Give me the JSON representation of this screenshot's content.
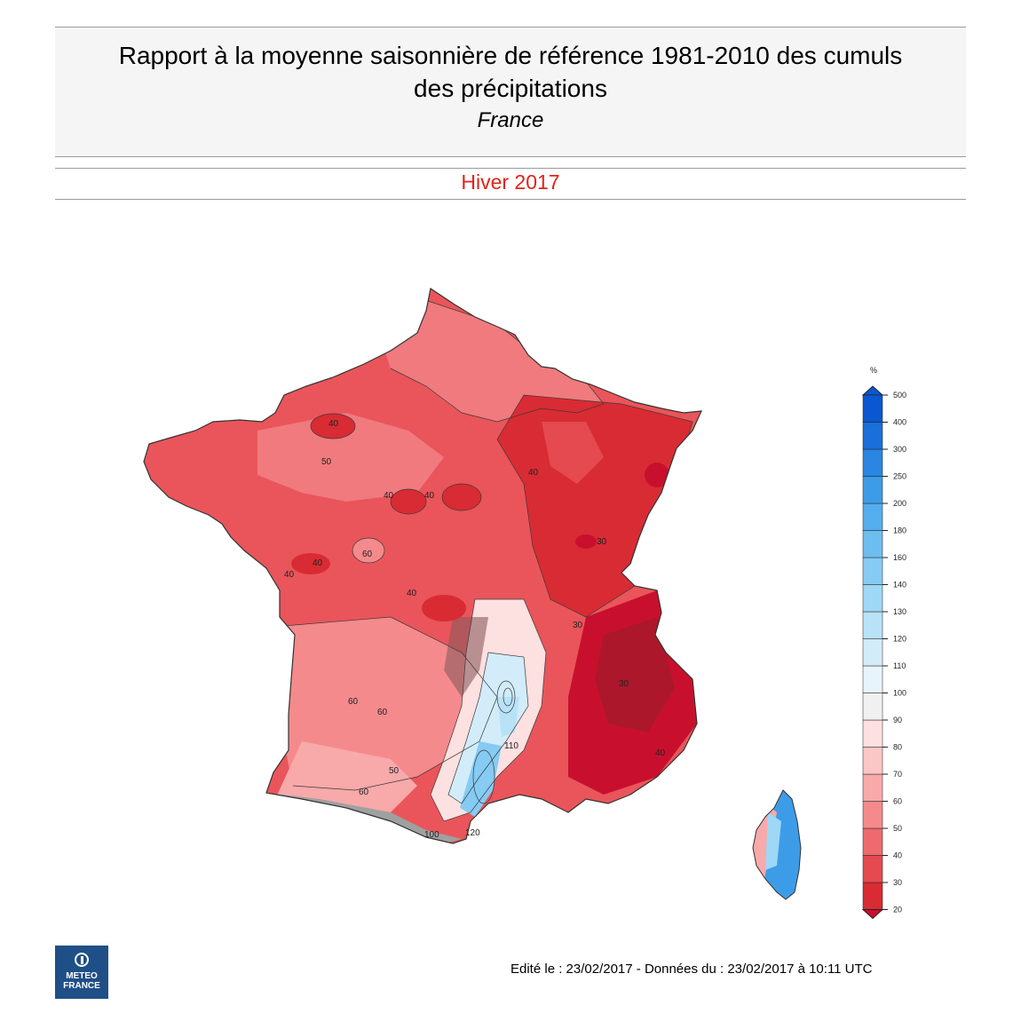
{
  "header": {
    "title_line1": "Rapport à la moyenne saisonnière de référence 1981-2010 des cumuls",
    "title_line2": "des précipitations",
    "subtitle": "France"
  },
  "season": "Hiver 2017",
  "legend": {
    "unit": "%",
    "levels": [
      20,
      30,
      40,
      50,
      60,
      70,
      80,
      90,
      100,
      110,
      120,
      130,
      140,
      160,
      180,
      200,
      250,
      300,
      400,
      500
    ],
    "colors": [
      "#c8102e",
      "#d92b33",
      "#e44a4f",
      "#ee6a6e",
      "#f48a8c",
      "#f8a9aa",
      "#fbc6c6",
      "#fde0e0",
      "#f0f0f0",
      "#e8f4fb",
      "#d2ecfa",
      "#b8e2f8",
      "#9fd7f6",
      "#86cbf3",
      "#6dbdf0",
      "#55aeed",
      "#3d9ce8",
      "#2a86e0",
      "#1a6fd8",
      "#0b57d0"
    ]
  },
  "map": {
    "contour_labels": [
      {
        "text": "40"
      },
      {
        "text": "50"
      },
      {
        "text": "40"
      },
      {
        "text": "40"
      },
      {
        "text": "60"
      },
      {
        "text": "40"
      },
      {
        "text": "40"
      },
      {
        "text": "40"
      },
      {
        "text": "30"
      },
      {
        "text": "40"
      },
      {
        "text": "30"
      },
      {
        "text": "60"
      },
      {
        "text": "60"
      },
      {
        "text": "50"
      },
      {
        "text": "60"
      },
      {
        "text": "110"
      },
      {
        "text": "120"
      },
      {
        "text": "40"
      },
      {
        "text": "30"
      },
      {
        "text": "100"
      }
    ],
    "regions": [
      "France métropolitaine",
      "Corse"
    ]
  },
  "logo": {
    "line1": "METEO",
    "line2": "FRANCE"
  },
  "footer": "Edité le : 23/02/2017 - Données du : 23/02/2017 à 10:11 UTC"
}
